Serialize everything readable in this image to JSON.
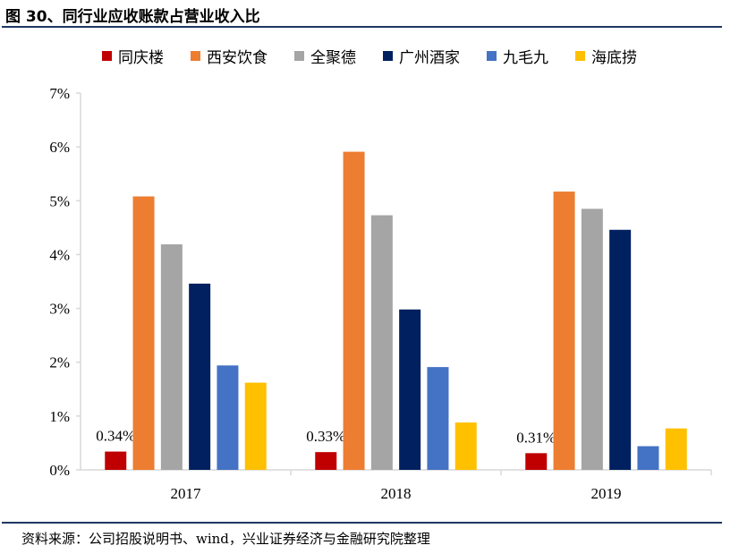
{
  "figure": {
    "title": "图 30、同行业应收账款占营业收入比",
    "source": "资料来源：公司招股说明书、wind，兴业证券经济与金融研究院整理"
  },
  "colors": {
    "series": [
      "#c00000",
      "#ed7d31",
      "#a5a5a5",
      "#002060",
      "#4472c4",
      "#ffc000"
    ],
    "rule": "#1f3864",
    "axis": "#d9d9d9"
  },
  "chart_data": {
    "type": "bar",
    "title": "同行业应收账款占营业收入比",
    "xlabel": "",
    "ylabel": "",
    "categories": [
      "2017",
      "2018",
      "2019"
    ],
    "ylim": [
      0,
      7
    ],
    "yticks": [
      0,
      1,
      2,
      3,
      4,
      5,
      6,
      7
    ],
    "ytick_labels": [
      "0%",
      "1%",
      "2%",
      "3%",
      "4%",
      "5%",
      "6%",
      "7%"
    ],
    "grid": false,
    "legend_position": "top",
    "series": [
      {
        "name": "同庆楼",
        "values": [
          0.34,
          0.33,
          0.31
        ],
        "labels": [
          "0.34%",
          "0.33%",
          "0.31%"
        ]
      },
      {
        "name": "西安饮食",
        "values": [
          5.08,
          5.91,
          5.17
        ]
      },
      {
        "name": "全聚德",
        "values": [
          4.19,
          4.73,
          4.85
        ]
      },
      {
        "name": "广州酒家",
        "values": [
          3.46,
          2.98,
          4.46
        ]
      },
      {
        "name": "九毛九",
        "values": [
          1.94,
          1.91,
          0.44
        ]
      },
      {
        "name": "海底捞",
        "values": [
          1.62,
          0.88,
          0.77
        ]
      }
    ]
  }
}
